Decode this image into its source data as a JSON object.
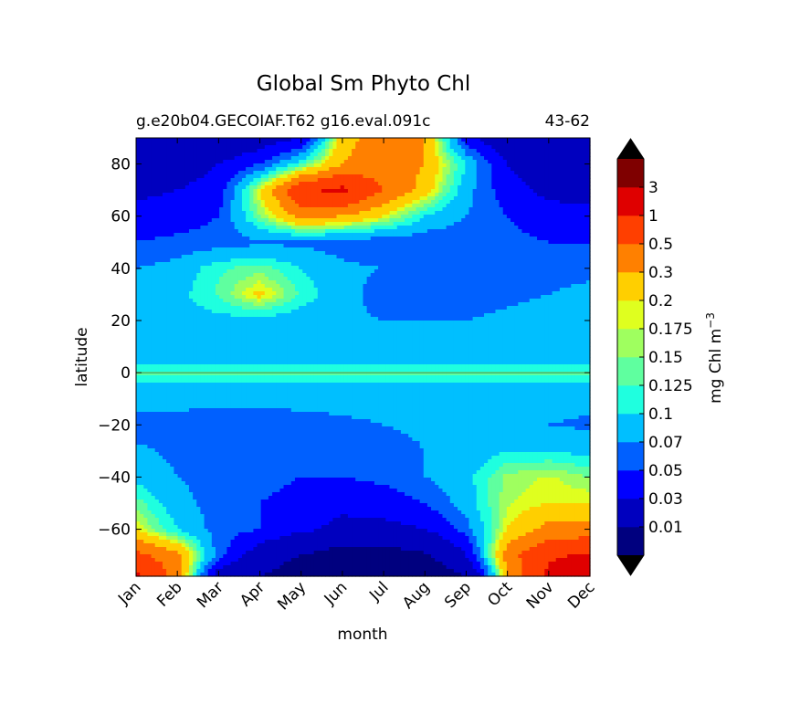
{
  "chart_data": {
    "type": "heatmap",
    "title": "Global Sm Phyto Chl",
    "subtitle_left": "g.e20b04.GECOIAF.T62 g16.eval.091c",
    "subtitle_right": "43-62",
    "xlabel": "month",
    "ylabel": "latitude",
    "x_ticks": [
      "Jan",
      "Feb",
      "Mar",
      "Apr",
      "May",
      "Jun",
      "Jul",
      "Aug",
      "Sep",
      "Oct",
      "Nov",
      "Dec"
    ],
    "y_ticks": [
      80,
      60,
      40,
      20,
      0,
      -20,
      -40,
      -60
    ],
    "ylim": [
      -78,
      90
    ],
    "colorbar": {
      "label": "mg Chl m",
      "label_superscript": "−3",
      "levels": [
        0.01,
        0.03,
        0.05,
        0.07,
        0.1,
        0.125,
        0.15,
        0.175,
        0.2,
        0.3,
        0.5,
        1,
        3
      ],
      "tick_labels": [
        "0.01",
        "0.03",
        "0.05",
        "0.07",
        "0.1",
        "0.125",
        "0.15",
        "0.175",
        "0.2",
        "0.3",
        "0.5",
        "1",
        "3"
      ],
      "colors": [
        "#00007f",
        "#0000bf",
        "#0000ff",
        "#0060ff",
        "#00bfff",
        "#1fffdf",
        "#5fff9f",
        "#9fff5f",
        "#dfff1f",
        "#ffcf00",
        "#ff8000",
        "#ff3f00",
        "#df0000",
        "#7f0000"
      ],
      "extend": "both"
    },
    "months": [
      1,
      2,
      3,
      4,
      5,
      6,
      7,
      8,
      9,
      10,
      11,
      12
    ],
    "latitudes": [
      -78,
      -70,
      -60,
      -50,
      -40,
      -30,
      -20,
      -10,
      -5,
      0,
      5,
      10,
      20,
      30,
      40,
      50,
      60,
      70,
      80,
      90
    ],
    "values": [
      [
        1.2,
        0.4,
        0.02,
        0.01,
        0.005,
        0.003,
        0.003,
        0.004,
        0.01,
        0.3,
        1.2,
        1.5
      ],
      [
        0.6,
        0.35,
        0.06,
        0.02,
        0.01,
        0.006,
        0.006,
        0.009,
        0.03,
        0.4,
        0.9,
        1.1
      ],
      [
        0.2,
        0.1,
        0.06,
        0.05,
        0.035,
        0.025,
        0.025,
        0.03,
        0.06,
        0.2,
        0.35,
        0.35
      ],
      [
        0.14,
        0.08,
        0.06,
        0.05,
        0.04,
        0.035,
        0.04,
        0.05,
        0.085,
        0.17,
        0.2,
        0.2
      ],
      [
        0.09,
        0.07,
        0.06,
        0.06,
        0.05,
        0.05,
        0.055,
        0.07,
        0.09,
        0.16,
        0.18,
        0.15
      ],
      [
        0.075,
        0.065,
        0.05,
        0.05,
        0.05,
        0.055,
        0.06,
        0.07,
        0.08,
        0.1,
        0.1,
        0.09
      ],
      [
        0.06,
        0.06,
        0.055,
        0.055,
        0.06,
        0.065,
        0.07,
        0.075,
        0.08,
        0.075,
        0.07,
        0.065
      ],
      [
        0.08,
        0.08,
        0.08,
        0.08,
        0.08,
        0.08,
        0.08,
        0.08,
        0.08,
        0.08,
        0.08,
        0.08
      ],
      [
        0.09,
        0.09,
        0.09,
        0.09,
        0.09,
        0.09,
        0.09,
        0.09,
        0.095,
        0.09,
        0.09,
        0.09
      ],
      [
        0.13,
        0.13,
        0.13,
        0.13,
        0.13,
        0.13,
        0.13,
        0.13,
        0.13,
        0.13,
        0.13,
        0.13
      ],
      [
        0.08,
        0.08,
        0.08,
        0.08,
        0.085,
        0.09,
        0.09,
        0.085,
        0.08,
        0.08,
        0.08,
        0.08
      ],
      [
        0.08,
        0.08,
        0.08,
        0.075,
        0.075,
        0.075,
        0.075,
        0.075,
        0.075,
        0.075,
        0.075,
        0.08
      ],
      [
        0.08,
        0.085,
        0.09,
        0.09,
        0.08,
        0.075,
        0.07,
        0.07,
        0.07,
        0.075,
        0.08,
        0.08
      ],
      [
        0.08,
        0.09,
        0.13,
        0.22,
        0.12,
        0.08,
        0.06,
        0.055,
        0.06,
        0.065,
        0.07,
        0.075
      ],
      [
        0.07,
        0.08,
        0.12,
        0.14,
        0.1,
        0.075,
        0.07,
        0.065,
        0.065,
        0.065,
        0.065,
        0.065
      ],
      [
        0.05,
        0.055,
        0.06,
        0.065,
        0.065,
        0.06,
        0.055,
        0.055,
        0.055,
        0.055,
        0.05,
        0.05
      ],
      [
        0.04,
        0.04,
        0.05,
        0.15,
        0.35,
        0.3,
        0.2,
        0.1,
        0.07,
        0.05,
        0.04,
        0.04
      ],
      [
        0.025,
        0.03,
        0.04,
        0.2,
        0.9,
        1.2,
        0.5,
        0.25,
        0.08,
        0.04,
        0.025,
        0.02
      ],
      [
        0.015,
        0.02,
        0.03,
        0.05,
        0.12,
        0.3,
        0.4,
        0.3,
        0.1,
        0.03,
        0.015,
        0.01
      ],
      [
        0.01,
        0.01,
        0.015,
        0.02,
        0.03,
        0.25,
        0.4,
        0.3,
        0.04,
        0.015,
        0.01,
        0.01
      ]
    ]
  }
}
